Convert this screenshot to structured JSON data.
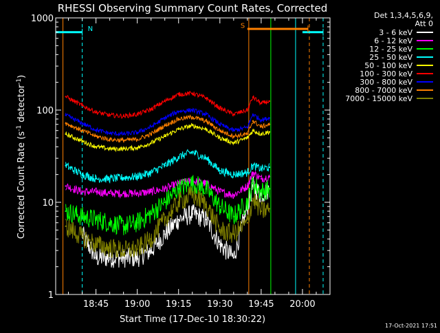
{
  "chart_data": {
    "type": "line",
    "title": "RHESSI Observing Summary Count Rates, Corrected",
    "xlabel": "Start Time (17-Dec-10 18:30:22)",
    "ylabel": "Corrected Count Rate (s",
    "ylabel_sup1": "-1",
    "ylabel_mid": " detector",
    "ylabel_sup2": "-1",
    "ylabel_end": ")",
    "y_scale": "log",
    "ylim": [
      1,
      1000
    ],
    "xlim": [
      "18:30:22",
      "20:10:00"
    ],
    "x_ticks": [
      "18:45",
      "19:00",
      "19:15",
      "19:30",
      "19:45",
      "20:00"
    ],
    "y_ticks": [
      "1",
      "10",
      "100",
      "1000"
    ],
    "legend_header": [
      "Det 1,3,4,5,6,9,",
      "Att 0"
    ],
    "legend_position": "top-right outside",
    "timestamp": "17-Oct-2021 17:51",
    "markers": {
      "night_label": "N",
      "saa_label": "S",
      "night_bar": {
        "x": [
          "18:30:22",
          "18:40:00"
        ],
        "y": 700,
        "color": "#00ffff"
      },
      "night_bar2": {
        "x": [
          "20:00:00",
          "20:07:30"
        ],
        "y": 700,
        "color": "#00ffff"
      },
      "saa_bar": {
        "x": [
          "19:40:00",
          "20:02:00"
        ],
        "y": 760,
        "color": "#ff8000"
      },
      "vlines": [
        {
          "t": "18:30:22",
          "color": "#00ffff",
          "style": "solid"
        },
        {
          "t": "18:40:00",
          "color": "#00ffff",
          "style": "dashed"
        },
        {
          "t": "18:33:00",
          "color": "#ff8000",
          "style": "solid"
        },
        {
          "t": "19:40:30",
          "color": "#ff8000",
          "style": "solid"
        },
        {
          "t": "19:57:30",
          "color": "#00ffff",
          "style": "solid"
        },
        {
          "t": "20:02:30",
          "color": "#ff8000",
          "style": "dashed"
        },
        {
          "t": "20:07:30",
          "color": "#00ffff",
          "style": "dashed"
        },
        {
          "t": "19:48:30",
          "color": "#00ff00",
          "style": "solid"
        }
      ]
    },
    "series": [
      {
        "name": "3 - 6 keV",
        "color": "#ffffff",
        "t": [
          "18:40",
          "18:45",
          "18:50",
          "18:55",
          "19:00",
          "19:05",
          "19:10",
          "19:15",
          "19:20",
          "19:25",
          "19:30",
          "19:35",
          "19:40",
          "19:42",
          "19:45",
          "19:48"
        ],
        "values": [
          4.5,
          2.5,
          2.5,
          2.5,
          2.5,
          3.0,
          4.5,
          6.5,
          7.5,
          6.5,
          3.5,
          2.5,
          9.0,
          15.0,
          12.0,
          14.0
        ]
      },
      {
        "name": "6 - 12 keV",
        "color": "#ff00ff",
        "t": [
          "18:34",
          "18:40",
          "18:45",
          "18:50",
          "18:55",
          "19:00",
          "19:05",
          "19:10",
          "19:15",
          "19:20",
          "19:25",
          "19:30",
          "19:35",
          "19:40",
          "19:42",
          "19:45",
          "19:48"
        ],
        "values": [
          15,
          13,
          13,
          12.5,
          12.5,
          12.5,
          13,
          14,
          16,
          17,
          16,
          13,
          12,
          15,
          21,
          18,
          19
        ]
      },
      {
        "name": "12 - 25 keV",
        "color": "#00ff00",
        "t": [
          "18:34",
          "18:40",
          "18:45",
          "18:50",
          "18:55",
          "19:00",
          "19:05",
          "19:10",
          "19:15",
          "19:20",
          "19:25",
          "19:30",
          "19:35",
          "19:40",
          "19:42",
          "19:45",
          "19:48"
        ],
        "values": [
          8,
          7,
          6.5,
          6,
          5.5,
          6,
          7.5,
          10,
          14,
          16,
          14,
          9,
          7,
          10,
          16,
          13,
          14
        ]
      },
      {
        "name": "25 - 50 keV",
        "color": "#00ffff",
        "t": [
          "18:34",
          "18:40",
          "18:45",
          "18:50",
          "18:55",
          "19:00",
          "19:05",
          "19:10",
          "19:15",
          "19:20",
          "19:25",
          "19:30",
          "19:35",
          "19:40",
          "19:42",
          "19:45",
          "19:48"
        ],
        "values": [
          25,
          20,
          18,
          18,
          18.5,
          19,
          21,
          25,
          31,
          35,
          30,
          22,
          20,
          21,
          25,
          23,
          24
        ]
      },
      {
        "name": "50 - 100 keV",
        "color": "#ffff00",
        "t": [
          "18:34",
          "18:40",
          "18:45",
          "18:50",
          "18:55",
          "19:00",
          "19:05",
          "19:10",
          "19:15",
          "19:20",
          "19:25",
          "19:30",
          "19:35",
          "19:40",
          "19:42",
          "19:45",
          "19:48"
        ],
        "values": [
          55,
          46,
          40,
          38,
          38,
          39,
          44,
          52,
          62,
          68,
          62,
          50,
          44,
          50,
          60,
          55,
          58
        ]
      },
      {
        "name": "100 - 300 keV",
        "color": "#ff0000",
        "t": [
          "18:34",
          "18:40",
          "18:45",
          "18:50",
          "18:55",
          "19:00",
          "19:05",
          "19:10",
          "19:15",
          "19:20",
          "19:25",
          "19:30",
          "19:35",
          "19:40",
          "19:42",
          "19:45",
          "19:48"
        ],
        "values": [
          140,
          112,
          95,
          88,
          86,
          90,
          102,
          125,
          148,
          152,
          135,
          105,
          90,
          100,
          138,
          118,
          125
        ]
      },
      {
        "name": "300 - 800 keV",
        "color": "#0000ff",
        "t": [
          "18:34",
          "18:40",
          "18:45",
          "18:50",
          "18:55",
          "19:00",
          "19:05",
          "19:10",
          "19:15",
          "19:20",
          "19:25",
          "19:30",
          "19:35",
          "19:40",
          "19:42",
          "19:45",
          "19:48"
        ],
        "values": [
          88,
          72,
          61,
          56,
          55,
          57,
          66,
          82,
          97,
          100,
          90,
          70,
          60,
          65,
          90,
          78,
          82
        ]
      },
      {
        "name": "800 - 7000 keV",
        "color": "#ff8000",
        "t": [
          "18:34",
          "18:40",
          "18:45",
          "18:50",
          "18:55",
          "19:00",
          "19:05",
          "19:10",
          "19:15",
          "19:20",
          "19:25",
          "19:30",
          "19:35",
          "19:40",
          "19:42",
          "19:45",
          "19:48"
        ],
        "values": [
          72,
          60,
          52,
          48,
          47,
          48,
          55,
          68,
          80,
          84,
          76,
          60,
          52,
          55,
          76,
          66,
          70
        ]
      },
      {
        "name": "7000 - 15000 keV",
        "color": "#808000",
        "t": [
          "18:34",
          "18:40",
          "18:45",
          "18:50",
          "18:55",
          "19:00",
          "19:05",
          "19:10",
          "19:15",
          "19:20",
          "19:25",
          "19:30",
          "19:35",
          "19:40",
          "19:42",
          "19:45",
          "19:48"
        ],
        "values": [
          5.5,
          4.2,
          3.5,
          3.2,
          3.0,
          3.1,
          4.0,
          6.5,
          10,
          12,
          9.5,
          5,
          4.5,
          6,
          11,
          8,
          8.5
        ]
      }
    ]
  }
}
